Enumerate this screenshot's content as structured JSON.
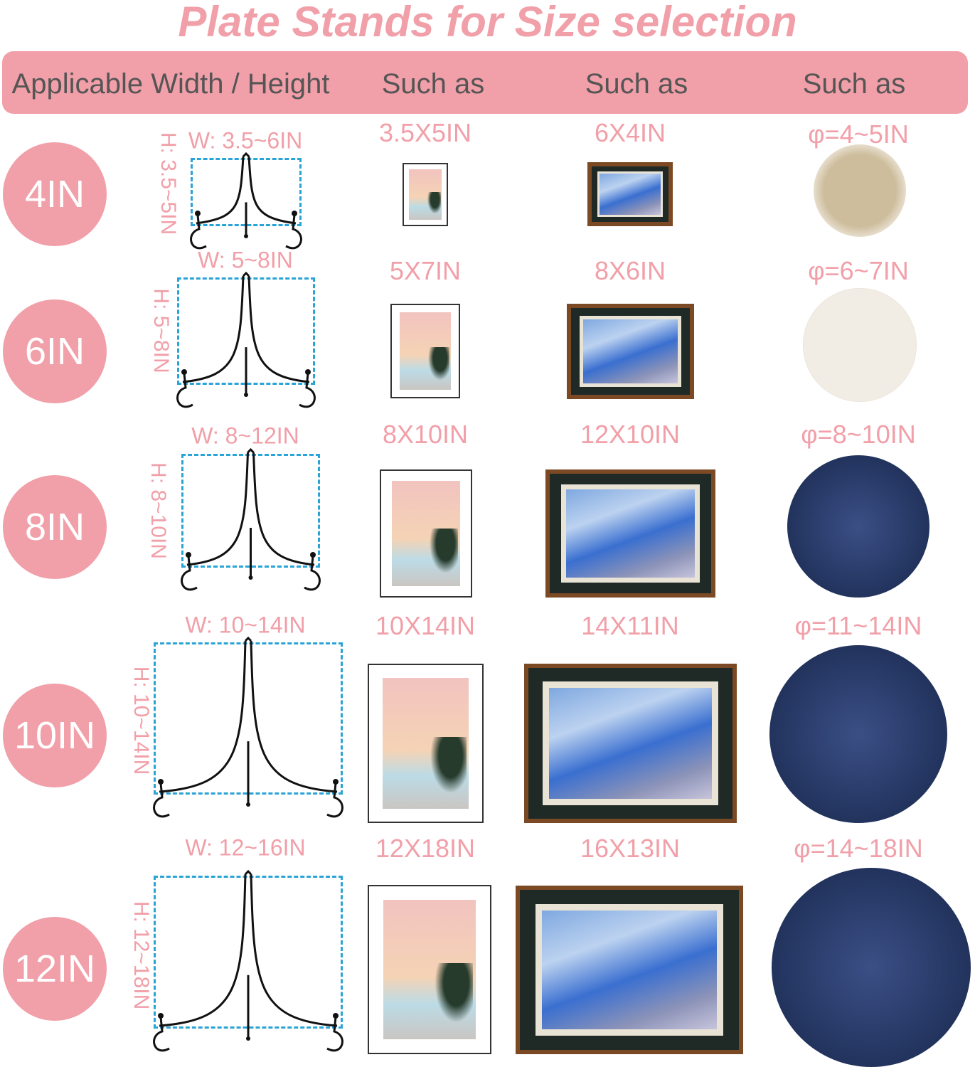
{
  "title": "Plate Stands for Size selection",
  "header": {
    "col1": "Applicable Width / Height",
    "col2": "Such as",
    "col3": "Such as",
    "col4": "Such as"
  },
  "colors": {
    "accent_pink": "#f19fa8",
    "header_text": "#555555",
    "dimension_box": "#2aa3d6"
  },
  "rows": [
    {
      "size": "4IN",
      "width": "W: 3.5~6IN",
      "height": "H: 3.5~5IN",
      "photo": "3.5X5IN",
      "frame": "6X4IN",
      "plate": "φ=4~5IN"
    },
    {
      "size": "6IN",
      "width": "W: 5~8IN",
      "height": "H: 5~8IN",
      "photo": "5X7IN",
      "frame": "8X6IN",
      "plate": "φ=6~7IN"
    },
    {
      "size": "8IN",
      "width": "W: 8~12IN",
      "height": "H: 8~10IN",
      "photo": "8X10IN",
      "frame": "12X10IN",
      "plate": "φ=8~10IN"
    },
    {
      "size": "10IN",
      "width": "W: 10~14IN",
      "height": "H: 10~14IN",
      "photo": "10X14IN",
      "frame": "14X11IN",
      "plate": "φ=11~14IN"
    },
    {
      "size": "12IN",
      "width": "W: 12~16IN",
      "height": "H: 12~18IN",
      "photo": "12X18IN",
      "frame": "16X13IN",
      "plate": "φ=14~18IN"
    }
  ]
}
